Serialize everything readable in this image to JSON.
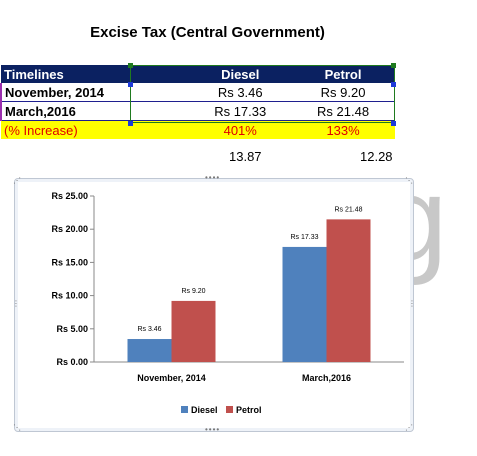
{
  "title": "Excise Tax (Central Government)",
  "table": {
    "headers": [
      "Timelines",
      "Diesel",
      "Petrol"
    ],
    "rows": [
      [
        "November, 2014",
        "Rs 3.46",
        "Rs 9.20"
      ],
      [
        "March,2016",
        "Rs 17.33",
        "Rs 21.48"
      ]
    ],
    "increase": [
      "(% Increase)",
      "401%",
      "133%"
    ],
    "diffs": [
      "13.87",
      "12.28"
    ]
  },
  "background_text": "ag",
  "colors": {
    "diesel": "#4f81bd",
    "petrol": "#c0504d",
    "header_bg": "#0b2161",
    "highlight": "#ffff00"
  },
  "chart_data": {
    "type": "bar",
    "categories": [
      "November, 2014",
      "March,2016"
    ],
    "series": [
      {
        "name": "Diesel",
        "values": [
          3.46,
          17.33
        ],
        "labels": [
          "Rs 3.46",
          "Rs 17.33"
        ]
      },
      {
        "name": "Petrol",
        "values": [
          9.2,
          21.48
        ],
        "labels": [
          "Rs 9.20",
          "Rs 21.48"
        ]
      }
    ],
    "yticks": [
      "Rs 0.00",
      "Rs 5.00",
      "Rs 10.00",
      "Rs 15.00",
      "Rs 20.00",
      "Rs 25.00"
    ],
    "ylim": [
      0,
      25
    ],
    "legend_position": "bottom",
    "grid": false
  }
}
